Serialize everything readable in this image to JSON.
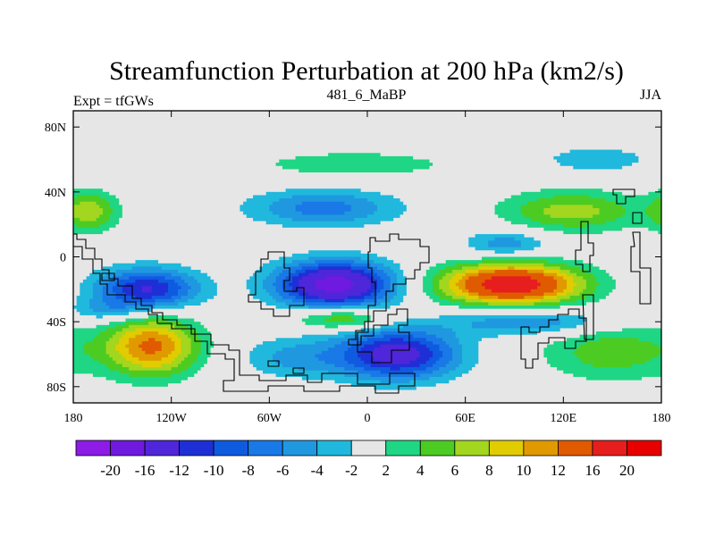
{
  "chart_data": {
    "type": "heatmap",
    "title": "Streamfunction Perturbation at 200 hPa (km2/s)",
    "subtitle_left": "Expt = tfGWs",
    "subtitle_center": "481_6_MaBP",
    "subtitle_right": "JJA",
    "x": {
      "range": [
        -180,
        180
      ],
      "ticks": [
        {
          "value": -180,
          "label": "180"
        },
        {
          "value": -120,
          "label": "120W"
        },
        {
          "value": -60,
          "label": "60W"
        },
        {
          "value": 0,
          "label": "0"
        },
        {
          "value": 60,
          "label": "60E"
        },
        {
          "value": 120,
          "label": "120E"
        },
        {
          "value": 180,
          "label": "180"
        }
      ]
    },
    "y": {
      "range": [
        -90,
        90
      ],
      "ticks": [
        {
          "value": 80,
          "label": "80N"
        },
        {
          "value": 40,
          "label": "40N"
        },
        {
          "value": 0,
          "label": "0"
        },
        {
          "value": -40,
          "label": "40S"
        },
        {
          "value": -80,
          "label": "80S"
        }
      ]
    },
    "colorbar": {
      "levels": [
        -20,
        -16,
        -12,
        -10,
        -8,
        -6,
        -4,
        -2,
        2,
        4,
        6,
        8,
        10,
        12,
        16,
        20
      ],
      "labels": [
        "-20",
        "-16",
        "-12",
        "-10",
        "-8",
        "-6",
        "-4",
        "-2",
        "2",
        "4",
        "6",
        "8",
        "10",
        "12",
        "16",
        "20"
      ],
      "colors": [
        "#8c1ce6",
        "#6e1adf",
        "#4f26d9",
        "#1f2fd6",
        "#0f5be0",
        "#1979e6",
        "#1f98e0",
        "#20b8dc",
        "#e6e6e6",
        "#1ed684",
        "#4ccc22",
        "#a3d61e",
        "#e0cc00",
        "#e09a00",
        "#e05a00",
        "#e61e1e",
        "#e60000"
      ]
    },
    "features": [
      {
        "lon": -135,
        "lat": -20,
        "amp": -12.5,
        "sx": 22,
        "sy": 9
      },
      {
        "lon": -20,
        "lat": -17,
        "amp": -18,
        "sx": 25,
        "sy": 10
      },
      {
        "lon": 18,
        "lat": -60,
        "amp": -14,
        "sx": 26,
        "sy": 11
      },
      {
        "lon": -27,
        "lat": 30,
        "amp": -7,
        "sx": 32,
        "sy": 8
      },
      {
        "lon": 88,
        "lat": -17,
        "amp": 19,
        "sx": 30,
        "sy": 9
      },
      {
        "lon": -132,
        "lat": -55,
        "amp": 12.5,
        "sx": 20,
        "sy": 13
      },
      {
        "lon": -15,
        "lat": -38,
        "amp": 7.5,
        "sx": 20,
        "sy": 5
      },
      {
        "lon": -8,
        "lat": 57,
        "amp": 3.5,
        "sx": 45,
        "sy": 6
      },
      {
        "lon": 125,
        "lat": 28,
        "amp": 7,
        "sx": 30,
        "sy": 9
      },
      {
        "lon": 150,
        "lat": -58,
        "amp": 5.5,
        "sx": 30,
        "sy": 13
      },
      {
        "lon": -170,
        "lat": 28,
        "amp": 7,
        "sx": 12,
        "sy": 9
      },
      {
        "lon": 85,
        "lat": 8,
        "amp": -5.5,
        "sx": 18,
        "sy": 6
      },
      {
        "lon": 100,
        "lat": -40,
        "amp": -6.5,
        "sx": 35,
        "sy": 6
      },
      {
        "lon": -160,
        "lat": -33,
        "amp": -4,
        "sx": 15,
        "sy": 5
      },
      {
        "lon": -45,
        "lat": -62,
        "amp": -4.5,
        "sx": 22,
        "sy": 9
      },
      {
        "lon": 140,
        "lat": 60,
        "amp": -3.5,
        "sx": 25,
        "sy": 6
      }
    ]
  }
}
